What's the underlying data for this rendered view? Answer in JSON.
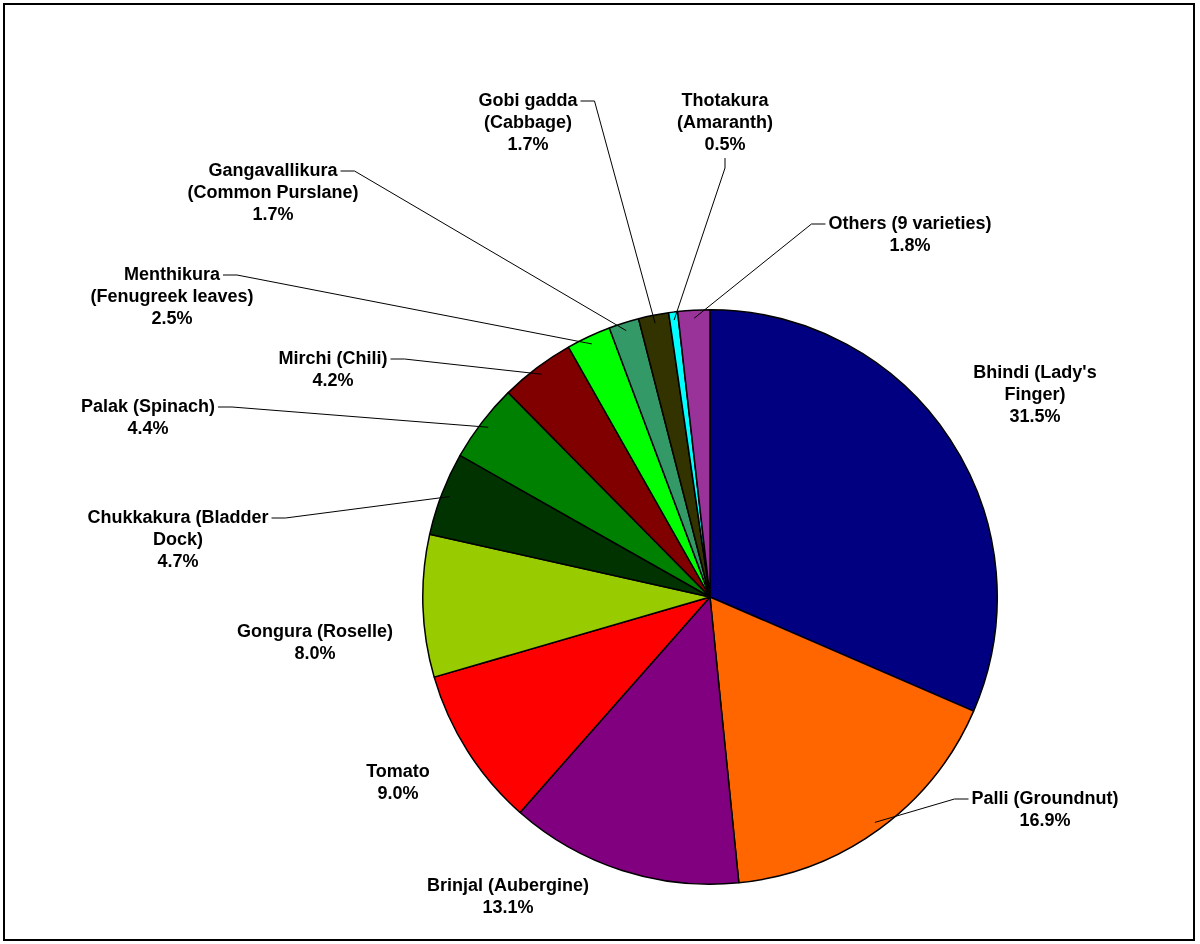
{
  "chart_data": {
    "type": "pie",
    "categories": [
      "Bhindi (Lady's Finger)",
      "Palli (Groundnut)",
      "Brinjal (Aubergine)",
      "Tomato",
      "Gongura (Roselle)",
      "Chukkakura (Bladder Dock)",
      "Palak (Spinach)",
      "Mirchi (Chili)",
      "Menthikura (Fenugreek leaves)",
      "Gangavallikura (Common Purslane)",
      "Gobi gadda (Cabbage)",
      "Thotakura (Amaranth)",
      "Others (9 varieties)"
    ],
    "values": [
      31.5,
      16.9,
      13.1,
      9.0,
      8.0,
      4.7,
      4.4,
      4.2,
      2.5,
      1.7,
      1.7,
      0.5,
      1.8
    ],
    "colors": [
      "#000080",
      "#ff6600",
      "#800080",
      "#ff0000",
      "#99cc00",
      "#003300",
      "#008000",
      "#800000",
      "#00ff00",
      "#339966",
      "#333300",
      "#00ffff",
      "#993399"
    ],
    "value_labels": [
      "31.5%",
      "16.9%",
      "13.1%",
      "9.0%",
      "8.0%",
      "4.7%",
      "4.4%",
      "4.2%",
      "2.5%",
      "1.7%",
      "1.7%",
      "0.5%",
      "1.8%"
    ],
    "legend": false
  }
}
